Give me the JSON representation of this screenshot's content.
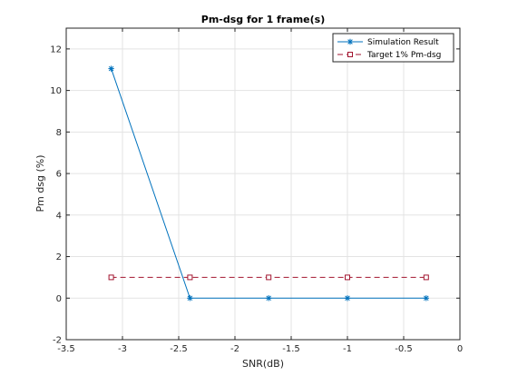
{
  "chart_data": {
    "type": "line",
    "title": "Pm-dsg for 1 frame(s)",
    "xlabel": "SNR(dB)",
    "ylabel": "Pm dsg (%)",
    "xlim": [
      -3.5,
      0
    ],
    "ylim": [
      -2,
      13
    ],
    "xticks": [
      -3.5,
      -3,
      -2.5,
      -2,
      -1.5,
      -1,
      -0.5,
      0
    ],
    "xtick_labels": [
      "-3.5",
      "-3",
      "-2.5",
      "-2",
      "-1.5",
      "-1",
      "-0.5",
      "0"
    ],
    "yticks": [
      -2,
      0,
      2,
      4,
      6,
      8,
      10,
      12
    ],
    "ytick_labels": [
      "-2",
      "0",
      "2",
      "4",
      "6",
      "8",
      "10",
      "12"
    ],
    "grid": true,
    "legend_position": "top-right",
    "series": [
      {
        "name": "Simulation Result",
        "color": "#0072bd",
        "line_style": "solid",
        "marker": "asterisk",
        "x": [
          -3.1,
          -2.4,
          -1.7,
          -1.0,
          -0.3
        ],
        "y": [
          11.05,
          0.0,
          0.0,
          0.0,
          0.0
        ]
      },
      {
        "name": "Target 1% Pm-dsg",
        "color": "#a2142f",
        "line_style": "dashed",
        "marker": "square",
        "x": [
          -3.1,
          -2.4,
          -1.7,
          -1.0,
          -0.3
        ],
        "y": [
          1,
          1,
          1,
          1,
          1
        ]
      }
    ]
  }
}
